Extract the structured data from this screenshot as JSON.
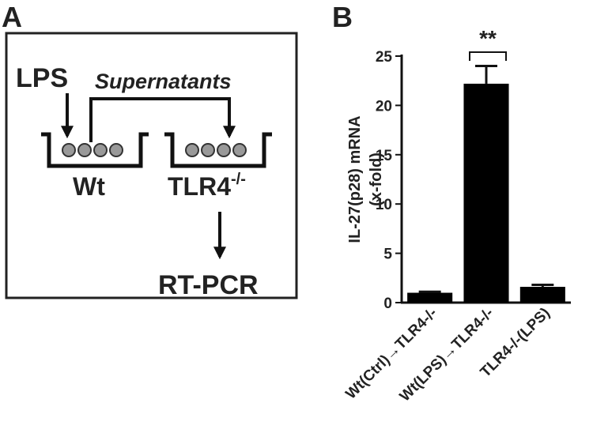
{
  "panel_a": {
    "label": "A",
    "stimulus": "LPS",
    "transfer": "Supernatants",
    "donor": "Wt",
    "recipient": "TLR4",
    "recipient_superscript": "-/-",
    "readout": "RT-PCR"
  },
  "chart_data": {
    "type": "bar",
    "panel_label": "B",
    "ylabel": [
      "IL-27(p28) mRNA",
      "(x-fold)"
    ],
    "categories": [
      "Wt(Ctrl)→TLR4-/-",
      "Wt(LPS)→TLR4-/-",
      "TLR4-/-(LPS)"
    ],
    "values": [
      1.0,
      22.2,
      1.6
    ],
    "errors": [
      0.1,
      1.8,
      0.2
    ],
    "color": "#000000",
    "ylim": [
      0,
      25
    ],
    "yticks": [
      0,
      5,
      10,
      15,
      20,
      25
    ],
    "grid": false,
    "annotation": "**"
  }
}
